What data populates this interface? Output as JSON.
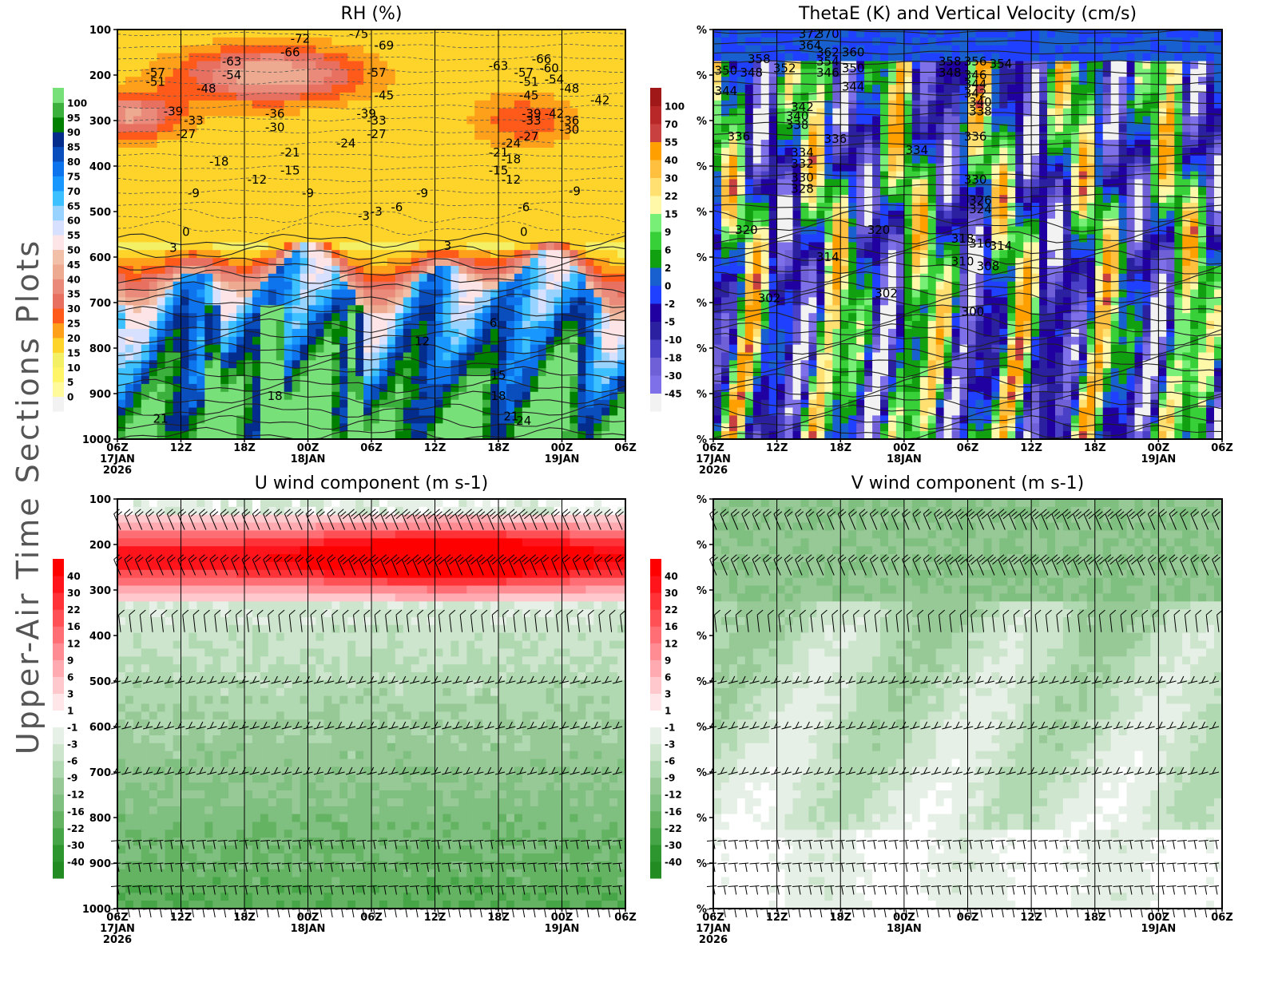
{
  "page": {
    "side_title": "Upper-Air Time Sections Plots"
  },
  "colors": {
    "rh_scale": [
      "#f2f2f2",
      "#fffb9c",
      "#fff566",
      "#f4f066",
      "#ffd42a",
      "#ffa01a",
      "#ff5a1a",
      "#e87060",
      "#ea8a7a",
      "#eeaa90",
      "#f2c0a8",
      "#fde4e6",
      "#d8e0ff",
      "#98d2ff",
      "#3cc0ff",
      "#1898ff",
      "#0e74ee",
      "#0a4ebe",
      "#042c8c",
      "#008000",
      "#3cb03c",
      "#78e078"
    ],
    "theta_scale": [
      "#f2f2f2",
      "#7e70e8",
      "#7060d8",
      "#4a40c8",
      "#2a20a0",
      "#2000a0",
      "#2040ff",
      "#1860d0",
      "#10a010",
      "#38d038",
      "#78f078",
      "#fff8a8",
      "#ffe070",
      "#ffc040",
      "#ffa000",
      "#c84040",
      "#b82828",
      "#a01818"
    ],
    "wind_scale": [
      "#228b22",
      "#2e962e",
      "#46a546",
      "#63b363",
      "#7fbf7f",
      "#97c997",
      "#b1d9b1",
      "#cde5cd",
      "#e6f0e6",
      "#ffffff",
      "#ffe6e8",
      "#ffc8cc",
      "#ffaab0",
      "#ff8c92",
      "#ff6e74",
      "#ff5056",
      "#ff3238",
      "#ff141c",
      "#ff0000"
    ]
  },
  "chart_data": [
    {
      "type": "heatmap",
      "id": "rh",
      "title": "RH (%)",
      "overlay": "temperature contours (degC)",
      "ylabel": "",
      "y_ticks": [
        "100",
        "200",
        "300",
        "400",
        "500",
        "600",
        "700",
        "800",
        "900",
        "1000"
      ],
      "ylim": [
        100,
        1000
      ],
      "x_ticks": [
        "06Z",
        "12Z",
        "18Z",
        "00Z",
        "06Z",
        "12Z",
        "18Z",
        "00Z",
        "06Z"
      ],
      "x_date_labels": [
        {
          "at": 0,
          "text": "17JAN"
        },
        {
          "at": 3,
          "text": "18JAN"
        },
        {
          "at": 7,
          "text": "19JAN"
        }
      ],
      "x_year": "2026",
      "colorbar_labels": [
        "0",
        "5",
        "10",
        "15",
        "20",
        "25",
        "30",
        "35",
        "40",
        "45",
        "50",
        "55",
        "60",
        "65",
        "70",
        "75",
        "80",
        "85",
        "90",
        "95",
        "100"
      ],
      "contour_labels": [
        {
          "t": 0.95,
          "p": 110,
          "v": "-75"
        },
        {
          "t": 0.72,
          "p": 120,
          "v": "-72"
        },
        {
          "t": 1.05,
          "p": 135,
          "v": "-69"
        },
        {
          "t": 0.68,
          "p": 150,
          "v": "-66"
        },
        {
          "t": 0.45,
          "p": 170,
          "v": "-63"
        },
        {
          "t": 1.7,
          "p": 185,
          "v": "-60"
        },
        {
          "t": 0.15,
          "p": 195,
          "v": "-57"
        },
        {
          "t": 1.02,
          "p": 195,
          "v": "-57"
        },
        {
          "t": 0.45,
          "p": 200,
          "v": "-54"
        },
        {
          "t": 1.72,
          "p": 210,
          "v": "-54"
        },
        {
          "t": 0.15,
          "p": 215,
          "v": "-51"
        },
        {
          "t": 0.35,
          "p": 230,
          "v": "-48"
        },
        {
          "t": 1.78,
          "p": 230,
          "v": "-48"
        },
        {
          "t": 1.05,
          "p": 245,
          "v": "-45"
        },
        {
          "t": 1.9,
          "p": 255,
          "v": "-42"
        },
        {
          "t": 0.22,
          "p": 280,
          "v": "-39"
        },
        {
          "t": 0.98,
          "p": 285,
          "v": "-39"
        },
        {
          "t": 0.62,
          "p": 285,
          "v": "-36"
        },
        {
          "t": 0.3,
          "p": 300,
          "v": "-33"
        },
        {
          "t": 1.02,
          "p": 300,
          "v": "-33"
        },
        {
          "t": 0.62,
          "p": 315,
          "v": "-30"
        },
        {
          "t": 0.27,
          "p": 330,
          "v": "-27"
        },
        {
          "t": 1.02,
          "p": 330,
          "v": "-27"
        },
        {
          "t": 0.9,
          "p": 350,
          "v": "-24"
        },
        {
          "t": 0.68,
          "p": 370,
          "v": "-21"
        },
        {
          "t": 0.4,
          "p": 390,
          "v": "-18"
        },
        {
          "t": 0.68,
          "p": 410,
          "v": "-15"
        },
        {
          "t": 0.55,
          "p": 430,
          "v": "-12"
        },
        {
          "t": 0.3,
          "p": 460,
          "v": "-9"
        },
        {
          "t": 1.2,
          "p": 460,
          "v": "-9"
        },
        {
          "t": 1.1,
          "p": 490,
          "v": "-6"
        },
        {
          "t": 1.02,
          "p": 500,
          "v": "-3"
        },
        {
          "t": 0.27,
          "p": 545,
          "v": "0"
        },
        {
          "t": 0.22,
          "p": 580,
          "v": "3"
        },
        {
          "t": 1.3,
          "p": 575,
          "v": "3"
        },
        {
          "t": 1.48,
          "p": 745,
          "v": "6"
        },
        {
          "t": 1.2,
          "p": 785,
          "v": "12"
        },
        {
          "t": 1.5,
          "p": 860,
          "v": "15"
        },
        {
          "t": 0.62,
          "p": 905,
          "v": "18"
        },
        {
          "t": 1.5,
          "p": 905,
          "v": "18"
        },
        {
          "t": 0.17,
          "p": 955,
          "v": "21"
        },
        {
          "t": 1.55,
          "p": 950,
          "v": "21"
        },
        {
          "t": 1.67,
          "p": 165,
          "v": "-66"
        },
        {
          "t": 1.5,
          "p": 180,
          "v": "-63"
        },
        {
          "t": 1.6,
          "p": 195,
          "v": "-57"
        },
        {
          "t": 1.62,
          "p": 215,
          "v": "-51"
        },
        {
          "t": 1.62,
          "p": 245,
          "v": "-45"
        },
        {
          "t": 1.63,
          "p": 285,
          "v": "-39"
        },
        {
          "t": 1.72,
          "p": 285,
          "v": "-42"
        },
        {
          "t": 1.78,
          "p": 300,
          "v": "-36"
        },
        {
          "t": 1.63,
          "p": 300,
          "v": "-33"
        },
        {
          "t": 1.78,
          "p": 320,
          "v": "-30"
        },
        {
          "t": 1.62,
          "p": 335,
          "v": "-27"
        },
        {
          "t": 1.55,
          "p": 350,
          "v": "-24"
        },
        {
          "t": 1.5,
          "p": 370,
          "v": "-21"
        },
        {
          "t": 1.55,
          "p": 385,
          "v": "-18"
        },
        {
          "t": 1.5,
          "p": 410,
          "v": "-15"
        },
        {
          "t": 1.55,
          "p": 430,
          "v": "-12"
        },
        {
          "t": 1.8,
          "p": 455,
          "v": "-9"
        },
        {
          "t": 1.6,
          "p": 490,
          "v": "-6"
        },
        {
          "t": 0.75,
          "p": 460,
          "v": "-9"
        },
        {
          "t": 0.97,
          "p": 510,
          "v": "-3"
        },
        {
          "t": 1.6,
          "p": 545,
          "v": "0"
        },
        {
          "t": 1.6,
          "p": 960,
          "v": "24"
        }
      ]
    },
    {
      "type": "heatmap",
      "id": "thetae",
      "title": "ThetaE (K) and Vertical Velocity (cm/s)",
      "overlay": "theta-e contours (K)",
      "y_ticks": [
        "%",
        "%",
        "%",
        "%",
        "%",
        "%",
        "%",
        "%",
        "%",
        "%"
      ],
      "x_ticks": [
        "06Z",
        "12Z",
        "18Z",
        "00Z",
        "06Z",
        "12Z",
        "18Z",
        "00Z",
        "06Z"
      ],
      "x_date_labels": [
        {
          "at": 0,
          "text": "17JAN"
        },
        {
          "at": 3,
          "text": "18JAN"
        },
        {
          "at": 7,
          "text": "19JAN"
        }
      ],
      "x_year": "2026",
      "colorbar_labels": [
        "-45",
        "-30",
        "-18",
        "-10",
        "-5",
        "-2",
        "0",
        "2",
        "6",
        "9",
        "15",
        "22",
        "30",
        "40",
        "55",
        "70",
        "100"
      ],
      "contour_labels": [
        {
          "t": 0.38,
          "p": 110,
          "v": "372"
        },
        {
          "t": 0.45,
          "p": 110,
          "v": "370"
        },
        {
          "t": 0.38,
          "p": 135,
          "v": "364"
        },
        {
          "t": 0.45,
          "p": 150,
          "v": "362"
        },
        {
          "t": 0.55,
          "p": 150,
          "v": "360"
        },
        {
          "t": 0.18,
          "p": 165,
          "v": "358"
        },
        {
          "t": 0.93,
          "p": 170,
          "v": "358"
        },
        {
          "t": 1.03,
          "p": 170,
          "v": "356"
        },
        {
          "t": 1.13,
          "p": 175,
          "v": "354"
        },
        {
          "t": 0.45,
          "p": 170,
          "v": "354"
        },
        {
          "t": 0.28,
          "p": 185,
          "v": "352"
        },
        {
          "t": 0.05,
          "p": 190,
          "v": "350"
        },
        {
          "t": 0.55,
          "p": 185,
          "v": "350"
        },
        {
          "t": 0.15,
          "p": 195,
          "v": "348"
        },
        {
          "t": 0.93,
          "p": 195,
          "v": "348"
        },
        {
          "t": 0.45,
          "p": 195,
          "v": "346"
        },
        {
          "t": 1.03,
          "p": 200,
          "v": "346"
        },
        {
          "t": 0.05,
          "p": 235,
          "v": "344"
        },
        {
          "t": 0.55,
          "p": 225,
          "v": "344"
        },
        {
          "t": 1.03,
          "p": 220,
          "v": "344"
        },
        {
          "t": 0.35,
          "p": 270,
          "v": "342"
        },
        {
          "t": 1.03,
          "p": 240,
          "v": "342"
        },
        {
          "t": 0.33,
          "p": 290,
          "v": "340"
        },
        {
          "t": 1.05,
          "p": 260,
          "v": "340"
        },
        {
          "t": 0.33,
          "p": 310,
          "v": "338"
        },
        {
          "t": 1.05,
          "p": 280,
          "v": "338"
        },
        {
          "t": 0.1,
          "p": 335,
          "v": "336"
        },
        {
          "t": 0.48,
          "p": 340,
          "v": "336"
        },
        {
          "t": 1.03,
          "p": 335,
          "v": "336"
        },
        {
          "t": 0.35,
          "p": 370,
          "v": "334"
        },
        {
          "t": 0.8,
          "p": 365,
          "v": "334"
        },
        {
          "t": 0.35,
          "p": 395,
          "v": "332"
        },
        {
          "t": 0.35,
          "p": 425,
          "v": "330"
        },
        {
          "t": 1.03,
          "p": 430,
          "v": "330"
        },
        {
          "t": 0.35,
          "p": 450,
          "v": "328"
        },
        {
          "t": 1.05,
          "p": 475,
          "v": "326"
        },
        {
          "t": 1.05,
          "p": 495,
          "v": "324"
        },
        {
          "t": 0.13,
          "p": 540,
          "v": "320"
        },
        {
          "t": 0.65,
          "p": 540,
          "v": "320"
        },
        {
          "t": 0.98,
          "p": 560,
          "v": "318"
        },
        {
          "t": 1.05,
          "p": 570,
          "v": "316"
        },
        {
          "t": 1.13,
          "p": 575,
          "v": "314"
        },
        {
          "t": 0.45,
          "p": 600,
          "v": "314"
        },
        {
          "t": 0.98,
          "p": 610,
          "v": "310"
        },
        {
          "t": 1.08,
          "p": 620,
          "v": "308"
        },
        {
          "t": 0.22,
          "p": 690,
          "v": "302"
        },
        {
          "t": 0.68,
          "p": 680,
          "v": "302"
        },
        {
          "t": 1.02,
          "p": 720,
          "v": "300"
        }
      ]
    },
    {
      "type": "heatmap",
      "id": "uwind",
      "title": "U wind component (m s-1)",
      "overlay": "wind barbs",
      "y_ticks": [
        "100",
        "200",
        "300",
        "400",
        "500",
        "600",
        "700",
        "800",
        "900",
        "1000"
      ],
      "ylim": [
        100,
        1000
      ],
      "x_ticks": [
        "06Z",
        "12Z",
        "18Z",
        "00Z",
        "06Z",
        "12Z",
        "18Z",
        "00Z",
        "06Z"
      ],
      "x_date_labels": [
        {
          "at": 0,
          "text": "17JAN"
        },
        {
          "at": 3,
          "text": "18JAN"
        },
        {
          "at": 7,
          "text": "19JAN"
        }
      ],
      "x_year": "2026",
      "colorbar_labels": [
        "-40",
        "-30",
        "-22",
        "-16",
        "-12",
        "-9",
        "-6",
        "-3",
        "-1",
        "1",
        "3",
        "6",
        "9",
        "12",
        "16",
        "22",
        "30",
        "40"
      ],
      "barb_levels": [
        150,
        250,
        375,
        500,
        600,
        700,
        850,
        900,
        950,
        1000
      ]
    },
    {
      "type": "heatmap",
      "id": "vwind",
      "title": "V wind component (m s-1)",
      "overlay": "wind barbs",
      "y_ticks": [
        "%",
        "%",
        "%",
        "%",
        "%",
        "%",
        "%",
        "%",
        "%",
        "%"
      ],
      "x_ticks": [
        "06Z",
        "12Z",
        "18Z",
        "00Z",
        "06Z",
        "12Z",
        "18Z",
        "00Z",
        "06Z"
      ],
      "x_date_labels": [
        {
          "at": 0,
          "text": "17JAN"
        },
        {
          "at": 3,
          "text": "18JAN"
        },
        {
          "at": 7,
          "text": "19JAN"
        }
      ],
      "x_year": "2026",
      "colorbar_labels": [
        "-40",
        "-30",
        "-22",
        "-16",
        "-12",
        "-9",
        "-6",
        "-3",
        "-1",
        "1",
        "3",
        "6",
        "9",
        "12",
        "16",
        "22",
        "30",
        "40"
      ],
      "barb_levels": [
        150,
        250,
        375,
        500,
        600,
        700,
        850,
        900,
        950,
        1000
      ]
    }
  ]
}
